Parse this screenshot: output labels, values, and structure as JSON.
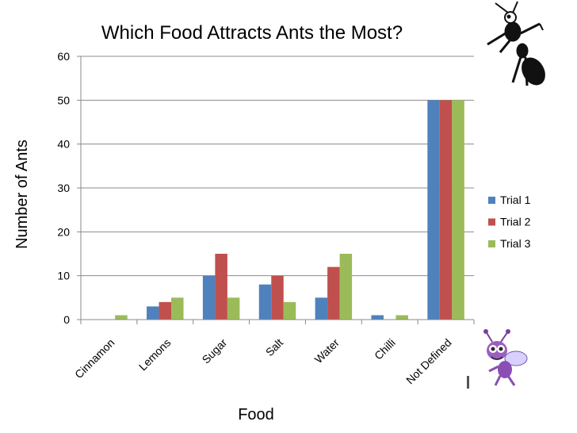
{
  "chart_data": {
    "type": "bar",
    "title": "Which Food Attracts Ants the Most?",
    "xlabel": "Food",
    "ylabel": "Number of Ants",
    "categories": [
      "Cinnamon",
      "Lemons",
      "Sugar",
      "Salt",
      "Water",
      "Chilli",
      "Not Defined"
    ],
    "series": [
      {
        "name": "Trial 1",
        "color": "#4F81BD",
        "values": [
          0,
          3,
          10,
          8,
          5,
          1,
          50
        ]
      },
      {
        "name": "Trial 2",
        "color": "#C0504D",
        "values": [
          0,
          4,
          15,
          10,
          12,
          0,
          50
        ]
      },
      {
        "name": "Trial 3",
        "color": "#9BBB59",
        "values": [
          1,
          5,
          5,
          4,
          15,
          1,
          50
        ]
      }
    ],
    "ylim": [
      0,
      60
    ],
    "yticks": [
      0,
      10,
      20,
      30,
      40,
      50,
      60
    ],
    "grid": true,
    "legend_position": "right"
  },
  "decorations": {
    "top_right_image": "ant-icon",
    "bottom_right_image": "cartoon-bug-icon"
  }
}
